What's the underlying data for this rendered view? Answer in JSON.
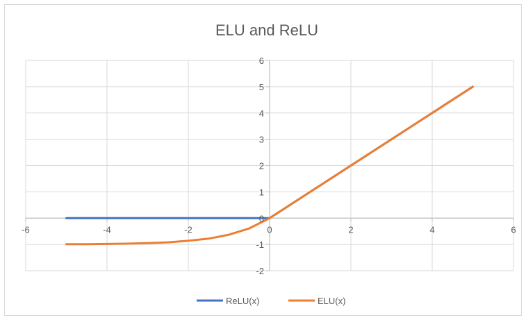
{
  "chart_data": {
    "type": "line",
    "title": "ELU and ReLU",
    "xlabel": "",
    "ylabel": "",
    "xlim": [
      -6,
      6
    ],
    "ylim": [
      -2,
      6
    ],
    "x_ticks": [
      -6,
      -4,
      -2,
      0,
      2,
      4,
      6
    ],
    "y_ticks": [
      -2,
      -1,
      0,
      1,
      2,
      3,
      4,
      5,
      6
    ],
    "grid": true,
    "legend_position": "bottom",
    "series": [
      {
        "name": "ReLU(x)",
        "color": "#4472c4",
        "x": [
          -5,
          -4,
          -3,
          -2,
          -1,
          0,
          1,
          2,
          3,
          4,
          5
        ],
        "y": [
          0,
          0,
          0,
          0,
          0,
          0,
          1,
          2,
          3,
          4,
          5
        ]
      },
      {
        "name": "ELU(x)",
        "color": "#ed7d31",
        "x": [
          -5,
          -4.5,
          -4,
          -3.5,
          -3,
          -2.5,
          -2,
          -1.5,
          -1,
          -0.5,
          0,
          1,
          2,
          3,
          4,
          5
        ],
        "y": [
          -0.99,
          -0.99,
          -0.98,
          -0.97,
          -0.95,
          -0.92,
          -0.86,
          -0.78,
          -0.63,
          -0.39,
          0,
          1,
          2,
          3,
          4,
          5
        ]
      }
    ]
  }
}
